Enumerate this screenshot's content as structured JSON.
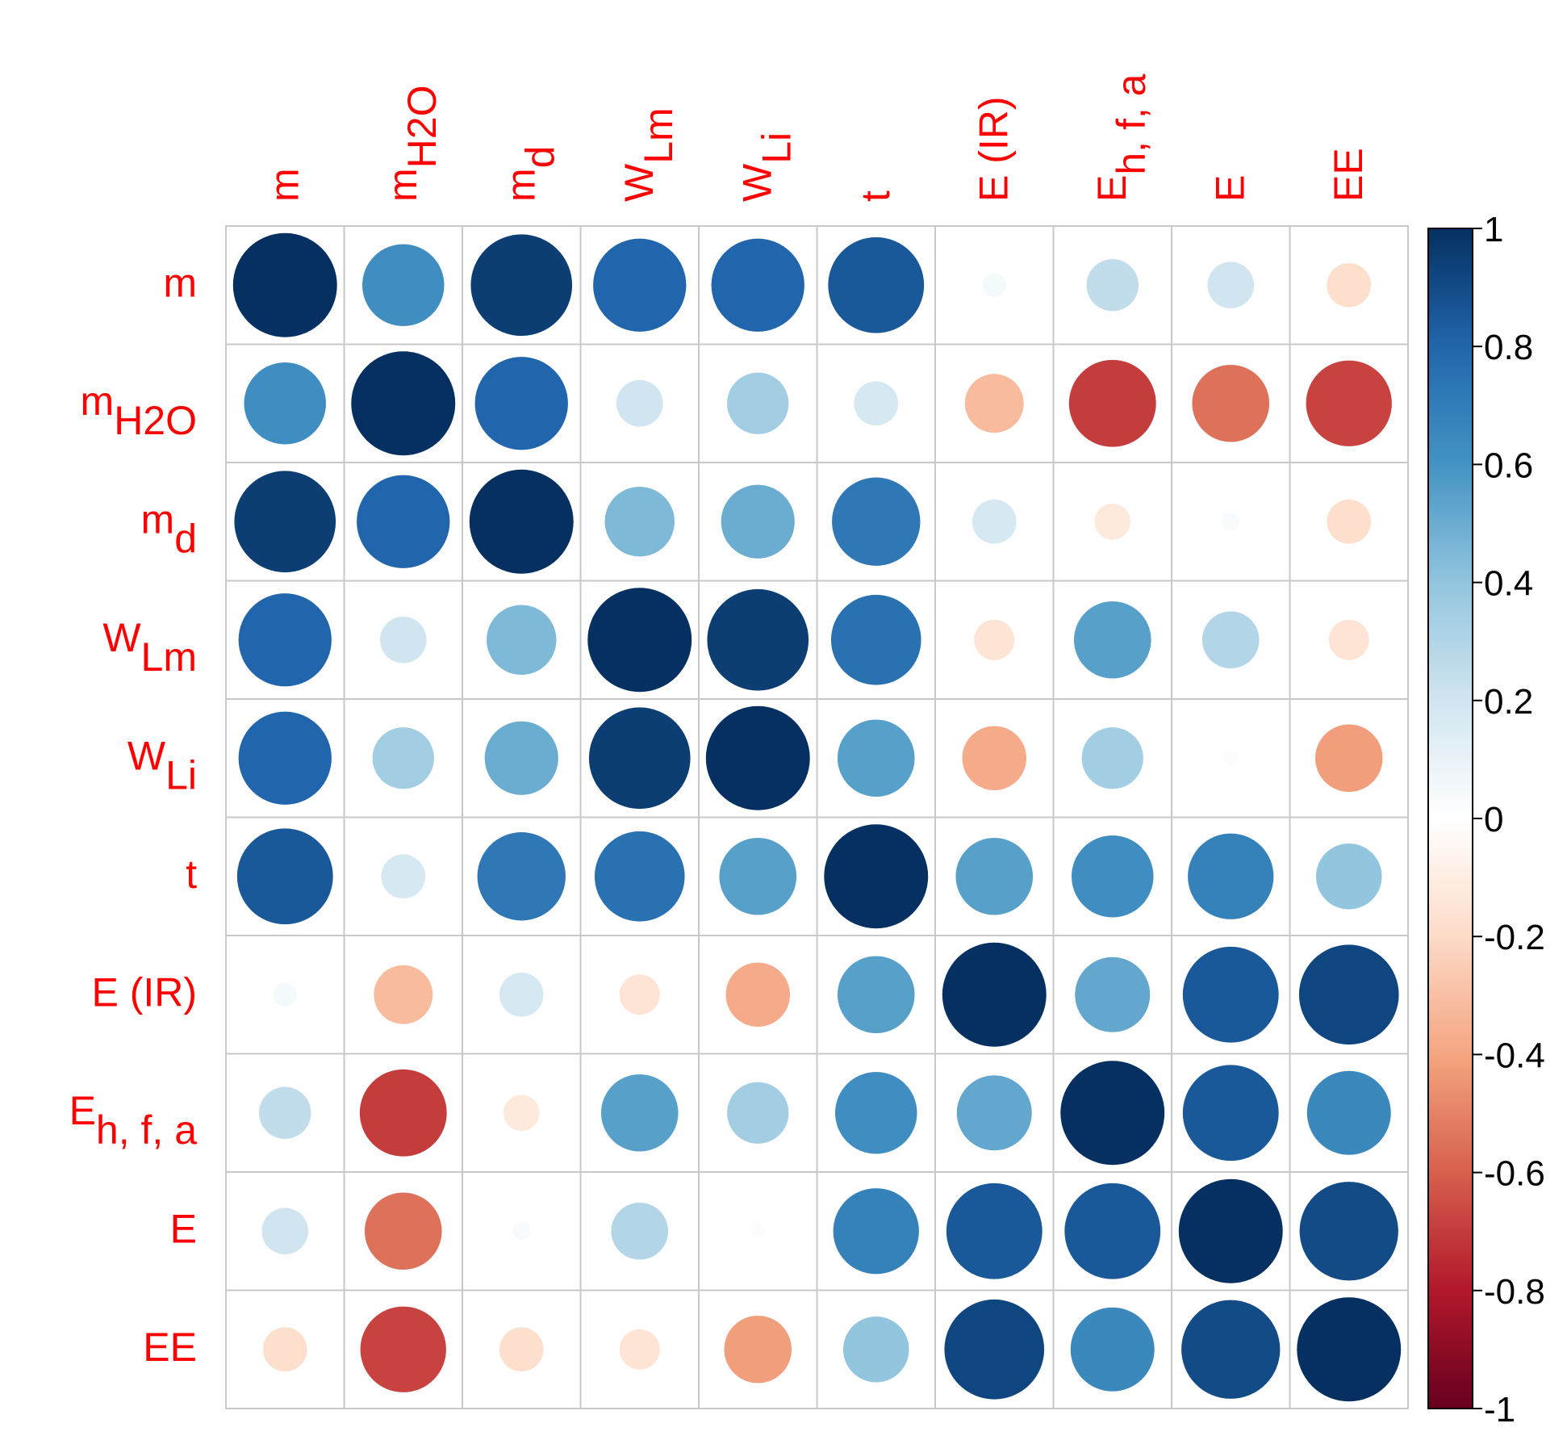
{
  "chart_data": {
    "type": "heatmap",
    "subtype": "correlation-matrix-circles",
    "variables": [
      {
        "id": "m",
        "base": "m",
        "sub": ""
      },
      {
        "id": "mH2O",
        "base": "m",
        "sub": "H2O"
      },
      {
        "id": "md",
        "base": "m",
        "sub": "d"
      },
      {
        "id": "WLm",
        "base": "W",
        "sub": "Lm"
      },
      {
        "id": "WLi",
        "base": "W",
        "sub": "Li"
      },
      {
        "id": "t",
        "base": "t",
        "sub": ""
      },
      {
        "id": "E (IR)",
        "base": "E (IR)",
        "sub": ""
      },
      {
        "id": "Eh, f, a",
        "base": "E",
        "sub": "h, f, a"
      },
      {
        "id": "E",
        "base": "E",
        "sub": ""
      },
      {
        "id": "EE",
        "base": "EE",
        "sub": ""
      }
    ],
    "matrix": [
      [
        1.0,
        0.62,
        0.95,
        0.8,
        0.8,
        0.85,
        0.05,
        0.25,
        0.2,
        -0.18
      ],
      [
        0.62,
        1.0,
        0.8,
        0.2,
        0.35,
        0.18,
        -0.32,
        -0.7,
        -0.55,
        -0.68
      ],
      [
        0.95,
        0.8,
        1.0,
        0.45,
        0.5,
        0.72,
        0.18,
        -0.12,
        0.03,
        -0.18
      ],
      [
        0.8,
        0.2,
        0.45,
        1.0,
        0.95,
        0.75,
        -0.15,
        0.55,
        0.3,
        -0.15
      ],
      [
        0.8,
        0.35,
        0.5,
        0.95,
        1.0,
        0.55,
        -0.38,
        0.35,
        0.02,
        -0.42
      ],
      [
        0.85,
        0.18,
        0.72,
        0.75,
        0.55,
        1.0,
        0.55,
        0.62,
        0.68,
        0.4
      ],
      [
        0.05,
        -0.32,
        0.18,
        -0.15,
        -0.38,
        0.55,
        1.0,
        0.52,
        0.85,
        0.92
      ],
      [
        0.25,
        -0.7,
        -0.12,
        0.55,
        0.35,
        0.62,
        0.52,
        1.0,
        0.85,
        0.65
      ],
      [
        0.2,
        -0.55,
        0.03,
        0.3,
        0.02,
        0.68,
        0.85,
        0.85,
        1.0,
        0.9
      ],
      [
        -0.18,
        -0.68,
        -0.18,
        -0.15,
        -0.42,
        0.4,
        0.92,
        0.65,
        0.9,
        1.0
      ]
    ],
    "colorbar": {
      "range": [
        -1,
        1
      ],
      "ticks": [
        "1",
        "0.8",
        "0.6",
        "0.4",
        "0.2",
        "0",
        "-0.2",
        "-0.4",
        "-0.6",
        "-0.8",
        "-1"
      ],
      "tick_values": [
        1,
        0.8,
        0.6,
        0.4,
        0.2,
        0,
        -0.2,
        -0.4,
        -0.6,
        -0.8,
        -1
      ],
      "palette": [
        "#67001F",
        "#B2182B",
        "#D6604D",
        "#F4A582",
        "#FDDBC7",
        "#FFFFFF",
        "#D1E5F0",
        "#92C5DE",
        "#4393C3",
        "#2166AC",
        "#053061"
      ]
    },
    "label_color": "#FF0000"
  }
}
